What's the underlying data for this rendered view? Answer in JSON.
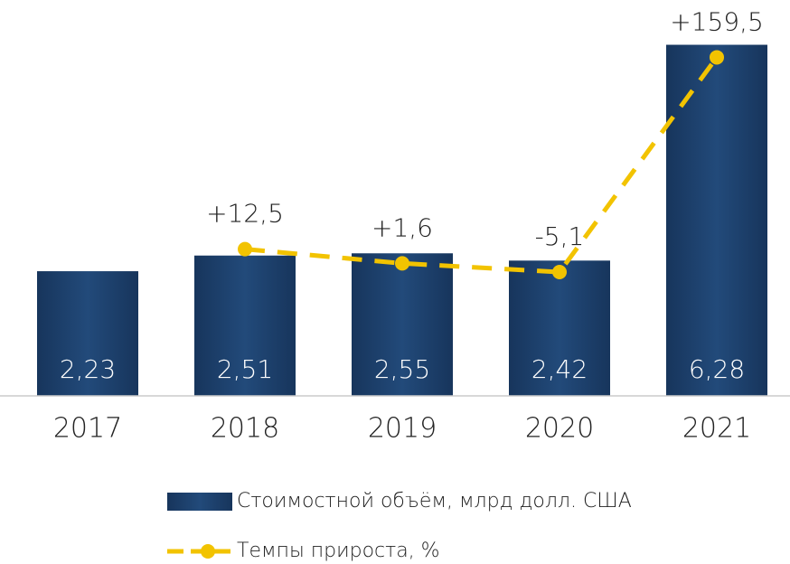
{
  "chart_data": {
    "type": "bar",
    "categories": [
      "2017",
      "2018",
      "2019",
      "2020",
      "2021"
    ],
    "series": [
      {
        "name": "Стоимостной объём, млрд долл. США",
        "type": "bar",
        "color": "#1c3d66",
        "values": [
          2.23,
          2.51,
          2.55,
          2.42,
          6.28
        ],
        "value_labels": [
          "2,23",
          "2,51",
          "2,55",
          "2,42",
          "6,28"
        ]
      },
      {
        "name": "Темпы прироста, %",
        "type": "line",
        "axis": "y2",
        "color": "#f2c300",
        "values": [
          null,
          12.5,
          1.6,
          -5.1,
          159.5
        ],
        "value_labels": [
          null,
          "+12,5",
          "+1,6",
          "-5,1",
          "+159,5"
        ]
      }
    ],
    "ylim": [
      0,
      7
    ],
    "y2lim": [
      -100,
      200
    ],
    "legend": "bottom"
  }
}
